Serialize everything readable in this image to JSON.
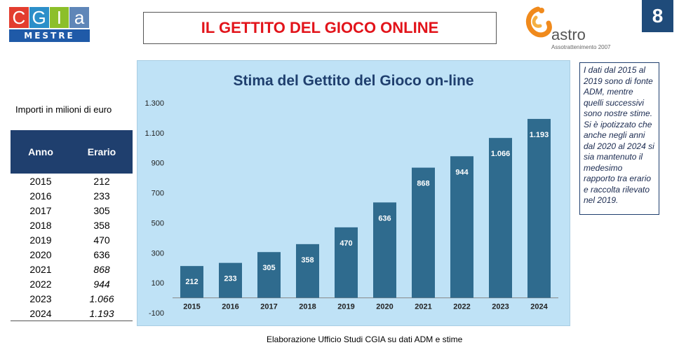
{
  "header": {
    "logo_letters": [
      "C",
      "G",
      "I",
      "a"
    ],
    "logo_colors": [
      "#e33d2f",
      "#2c8fc9",
      "#8cbf2a",
      "#5f86b8"
    ],
    "logo_sub": "MESTRE",
    "title": "IL GETTITO DEL GIOCO ONLINE",
    "partner_name": "astro",
    "partner_tag": "Assotrattenimento 2007",
    "page_number": "8"
  },
  "units_note": "Importi in milioni di euro",
  "table": {
    "col_year": "Anno",
    "col_value": "Erario",
    "rows": [
      {
        "year": "2015",
        "value": "212"
      },
      {
        "year": "2016",
        "value": "233"
      },
      {
        "year": "2017",
        "value": "305"
      },
      {
        "year": "2018",
        "value": "358"
      },
      {
        "year": "2019",
        "value": "470"
      },
      {
        "year": "2020",
        "value": "636"
      },
      {
        "year": "2021",
        "value": "868"
      },
      {
        "year": "2022",
        "value": "944"
      },
      {
        "year": "2023",
        "value": "1.066"
      },
      {
        "year": "2024",
        "value": "1.193"
      }
    ]
  },
  "side_note": "I dati dal 2015 al 2019 sono di fonte ADM, mentre quelli successivi sono nostre stime. Si è ipotizzato che anche negli anni dal 2020 al 2024 si sia mantenuto il medesimo rapporto tra erario e raccolta rilevato nel 2019.",
  "source": "Elaborazione Ufficio Studi CGIA su dati ADM e stime",
  "colors": {
    "bar": "#2f6b8e",
    "plot_bg": "#bfe2f6",
    "title": "#1f3f6e",
    "accent": "#e2141b"
  },
  "chart_data": {
    "type": "bar",
    "title": "Stima del Gettito del Gioco on-line",
    "categories": [
      "2015",
      "2016",
      "2017",
      "2018",
      "2019",
      "2020",
      "2021",
      "2022",
      "2023",
      "2024"
    ],
    "values": [
      212,
      233,
      305,
      358,
      470,
      636,
      868,
      944,
      1066,
      1193
    ],
    "value_labels": [
      "212",
      "233",
      "305",
      "358",
      "470",
      "636",
      "868",
      "944",
      "1.066",
      "1.193"
    ],
    "y_ticks": [
      -100,
      100,
      300,
      500,
      700,
      900,
      1100,
      1300
    ],
    "y_tick_labels": [
      "-100",
      "100",
      "300",
      "500",
      "700",
      "900",
      "1.100",
      "1.300"
    ],
    "ylim": [
      -100,
      1300
    ],
    "xlabel": "",
    "ylabel": "",
    "grid": false,
    "legend": "none"
  }
}
